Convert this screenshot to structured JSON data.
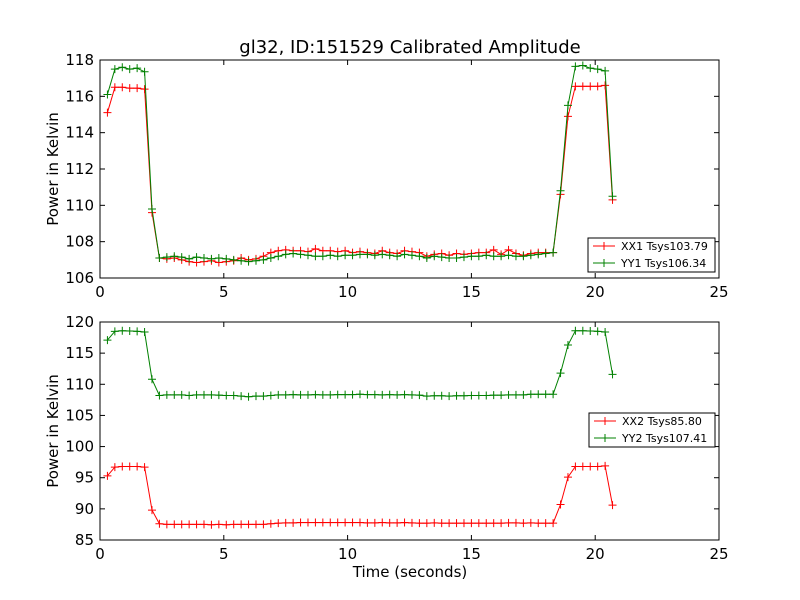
{
  "chart_data": [
    {
      "type": "line",
      "title": "gl32, ID:151529 Calibrated Amplitude",
      "xlabel": "",
      "ylabel": "Power in Kelvin",
      "xlim": [
        0,
        25
      ],
      "ylim": [
        106,
        118
      ],
      "xticks": [
        "0",
        "5",
        "10",
        "15",
        "20",
        "25"
      ],
      "yticks": [
        "106",
        "108",
        "110",
        "112",
        "114",
        "116",
        "118"
      ],
      "xtick_values": [
        0,
        5,
        10,
        15,
        20,
        25
      ],
      "ytick_values": [
        106,
        108,
        110,
        112,
        114,
        116,
        118
      ],
      "grid": false,
      "legend_position": "lower-right",
      "x": [
        0.3,
        0.6,
        0.9,
        1.2,
        1.5,
        1.8,
        2.1,
        2.4,
        2.7,
        3.0,
        3.3,
        3.6,
        3.9,
        4.2,
        4.5,
        4.8,
        5.1,
        5.4,
        5.7,
        6.0,
        6.3,
        6.6,
        6.9,
        7.2,
        7.5,
        7.8,
        8.1,
        8.4,
        8.7,
        9.0,
        9.3,
        9.6,
        9.9,
        10.2,
        10.5,
        10.8,
        11.1,
        11.4,
        11.7,
        12.0,
        12.3,
        12.6,
        12.9,
        13.2,
        13.5,
        13.8,
        14.1,
        14.4,
        14.7,
        15.0,
        15.3,
        15.6,
        15.9,
        16.2,
        16.5,
        16.8,
        17.1,
        17.4,
        17.7,
        18.0,
        18.3,
        18.6,
        18.9,
        19.2,
        19.5,
        19.8,
        20.1,
        20.4,
        20.7
      ],
      "series": [
        {
          "name": "XX1 Tsys103.79",
          "color": "#ff0000",
          "values": [
            115.1,
            116.5,
            116.5,
            116.45,
            116.45,
            116.4,
            109.6,
            107.1,
            107.05,
            107.1,
            107.0,
            106.9,
            106.85,
            106.9,
            106.95,
            106.85,
            106.9,
            106.95,
            107.1,
            107.0,
            107.05,
            107.2,
            107.4,
            107.5,
            107.55,
            107.5,
            107.5,
            107.45,
            107.6,
            107.5,
            107.5,
            107.45,
            107.5,
            107.4,
            107.45,
            107.4,
            107.35,
            107.5,
            107.4,
            107.35,
            107.5,
            107.45,
            107.4,
            107.2,
            107.3,
            107.35,
            107.25,
            107.35,
            107.3,
            107.35,
            107.4,
            107.4,
            107.55,
            107.3,
            107.55,
            107.35,
            107.25,
            107.35,
            107.4,
            107.4,
            107.4,
            110.6,
            114.9,
            116.55,
            116.55,
            116.55,
            116.55,
            116.6,
            110.3
          ]
        },
        {
          "name": "YY1 Tsys106.34",
          "color": "#008000",
          "values": [
            116.1,
            117.5,
            117.6,
            117.5,
            117.55,
            117.35,
            109.8,
            107.1,
            107.15,
            107.2,
            107.15,
            107.05,
            107.15,
            107.1,
            107.05,
            107.1,
            107.05,
            107.0,
            106.95,
            106.9,
            106.95,
            107.0,
            107.1,
            107.2,
            107.3,
            107.35,
            107.3,
            107.25,
            107.2,
            107.2,
            107.25,
            107.2,
            107.25,
            107.25,
            107.3,
            107.3,
            107.25,
            107.3,
            107.25,
            107.2,
            107.3,
            107.25,
            107.2,
            107.1,
            107.2,
            107.15,
            107.1,
            107.1,
            107.15,
            107.2,
            107.2,
            107.25,
            107.2,
            107.2,
            107.25,
            107.2,
            107.2,
            107.25,
            107.3,
            107.35,
            107.4,
            110.8,
            115.5,
            117.65,
            117.7,
            117.55,
            117.5,
            117.4,
            110.5
          ]
        }
      ]
    },
    {
      "type": "line",
      "title": "",
      "xlabel": "Time (seconds)",
      "ylabel": "Power in Kelvin",
      "xlim": [
        0,
        25
      ],
      "ylim": [
        85,
        120
      ],
      "xticks": [
        "0",
        "5",
        "10",
        "15",
        "20",
        "25"
      ],
      "yticks": [
        "85",
        "90",
        "95",
        "100",
        "105",
        "110",
        "115",
        "120"
      ],
      "xtick_values": [
        0,
        5,
        10,
        15,
        20,
        25
      ],
      "ytick_values": [
        85,
        90,
        95,
        100,
        105,
        110,
        115,
        120
      ],
      "grid": false,
      "legend_position": "center-right",
      "x": [
        0.3,
        0.6,
        0.9,
        1.2,
        1.5,
        1.8,
        2.1,
        2.4,
        2.7,
        3.0,
        3.3,
        3.6,
        3.9,
        4.2,
        4.5,
        4.8,
        5.1,
        5.4,
        5.7,
        6.0,
        6.3,
        6.6,
        6.9,
        7.2,
        7.5,
        7.8,
        8.1,
        8.4,
        8.7,
        9.0,
        9.3,
        9.6,
        9.9,
        10.2,
        10.5,
        10.8,
        11.1,
        11.4,
        11.7,
        12.0,
        12.3,
        12.6,
        12.9,
        13.2,
        13.5,
        13.8,
        14.1,
        14.4,
        14.7,
        15.0,
        15.3,
        15.6,
        15.9,
        16.2,
        16.5,
        16.8,
        17.1,
        17.4,
        17.7,
        18.0,
        18.3,
        18.6,
        18.9,
        19.2,
        19.5,
        19.8,
        20.1,
        20.4,
        20.7
      ],
      "series": [
        {
          "name": "XX2 Tsys85.80",
          "color": "#ff0000",
          "values": [
            95.3,
            96.7,
            96.8,
            96.8,
            96.8,
            96.7,
            89.8,
            87.6,
            87.5,
            87.5,
            87.5,
            87.5,
            87.5,
            87.5,
            87.45,
            87.5,
            87.45,
            87.5,
            87.5,
            87.5,
            87.5,
            87.5,
            87.6,
            87.7,
            87.75,
            87.75,
            87.8,
            87.8,
            87.8,
            87.8,
            87.8,
            87.8,
            87.8,
            87.8,
            87.8,
            87.75,
            87.75,
            87.8,
            87.75,
            87.75,
            87.8,
            87.75,
            87.7,
            87.7,
            87.75,
            87.7,
            87.7,
            87.7,
            87.7,
            87.7,
            87.7,
            87.7,
            87.7,
            87.7,
            87.75,
            87.75,
            87.7,
            87.75,
            87.7,
            87.7,
            87.7,
            90.7,
            95.1,
            96.8,
            96.8,
            96.8,
            96.8,
            96.9,
            90.6
          ]
        },
        {
          "name": "YY2 Tsys107.41",
          "color": "#008000",
          "values": [
            117.1,
            118.5,
            118.6,
            118.55,
            118.5,
            118.4,
            110.8,
            108.2,
            108.3,
            108.3,
            108.3,
            108.2,
            108.3,
            108.3,
            108.3,
            108.25,
            108.2,
            108.2,
            108.1,
            108.0,
            108.1,
            108.1,
            108.2,
            108.3,
            108.3,
            108.35,
            108.3,
            108.3,
            108.35,
            108.3,
            108.3,
            108.35,
            108.35,
            108.35,
            108.4,
            108.35,
            108.35,
            108.3,
            108.35,
            108.3,
            108.35,
            108.3,
            108.25,
            108.1,
            108.15,
            108.15,
            108.1,
            108.15,
            108.15,
            108.2,
            108.2,
            108.2,
            108.25,
            108.25,
            108.3,
            108.3,
            108.3,
            108.4,
            108.4,
            108.4,
            108.4,
            111.8,
            116.3,
            118.6,
            118.6,
            118.55,
            118.5,
            118.4,
            111.6
          ]
        }
      ]
    }
  ]
}
